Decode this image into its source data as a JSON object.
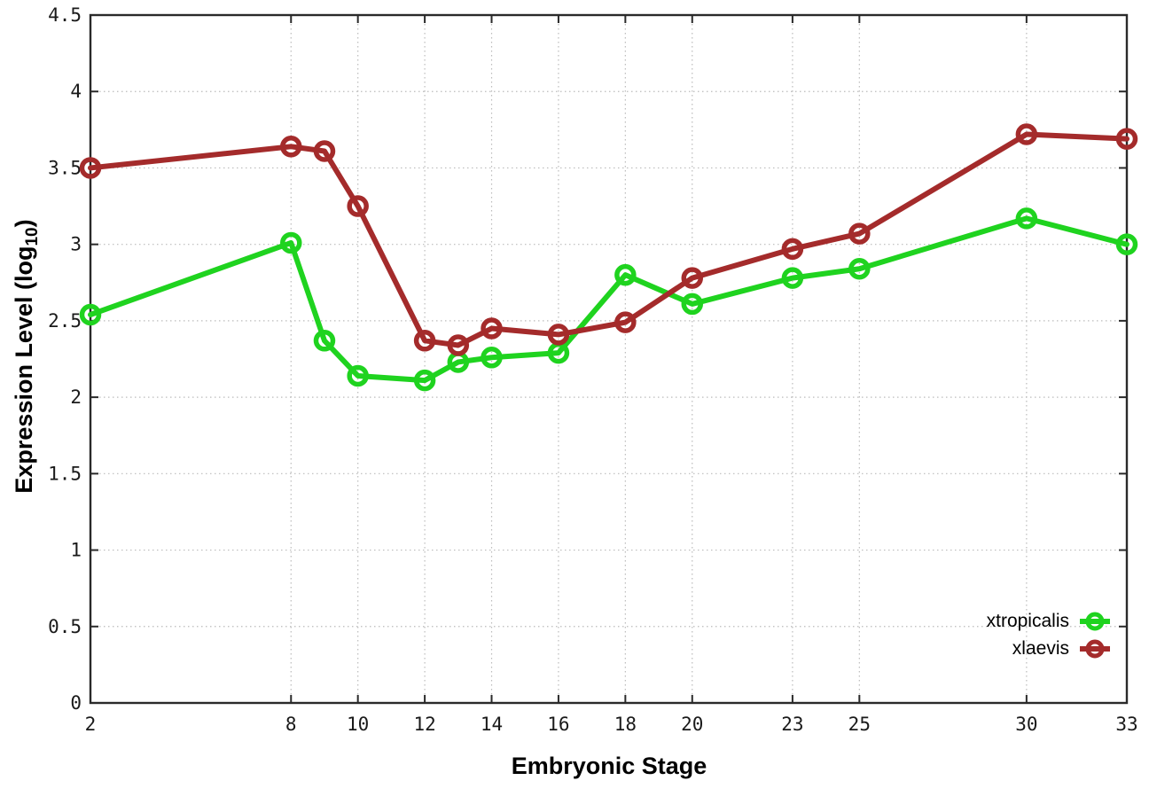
{
  "chart_data": {
    "type": "line",
    "title": "",
    "xlabel": "Embryonic Stage",
    "ylabel_text": "Expression Level (log",
    "ylabel_subscript": "10",
    "ylabel_suffix": ")",
    "x": [
      2,
      8,
      9,
      10,
      12,
      13,
      14,
      16,
      18,
      20,
      23,
      25,
      30,
      33
    ],
    "series": [
      {
        "name": "xtropicalis",
        "color": "#1fd31f",
        "values": [
          2.54,
          3.01,
          2.37,
          2.14,
          2.11,
          2.23,
          2.26,
          2.29,
          2.8,
          2.61,
          2.78,
          2.84,
          3.17,
          3.0
        ]
      },
      {
        "name": "xlaevis",
        "color": "#a42b2b",
        "values": [
          3.5,
          3.64,
          3.61,
          3.25,
          2.37,
          2.34,
          2.45,
          2.41,
          2.49,
          2.78,
          2.97,
          3.07,
          3.72,
          3.69
        ]
      }
    ],
    "xlim": [
      2,
      33
    ],
    "ylim": [
      0,
      4.5
    ],
    "xticks": [
      2,
      8,
      10,
      12,
      14,
      16,
      18,
      20,
      23,
      25,
      30,
      33
    ],
    "xtick_labels": [
      "2",
      "8",
      "10",
      "12",
      "14",
      "16",
      "18",
      "20",
      "23",
      "25",
      "30",
      "33"
    ],
    "yticks": [
      0,
      0.5,
      1,
      1.5,
      2,
      2.5,
      3,
      3.5,
      4,
      4.5
    ],
    "ytick_labels": [
      "0",
      "0.5",
      "1",
      "1.5",
      "2",
      "2.5",
      "3",
      "3.5",
      "4",
      "4.5"
    ],
    "grid": true,
    "legend_position": "bottom-right",
    "colors": {
      "grid": "#bbbbbb",
      "border": "#2a2a2a",
      "tick_text": "#1a1a1a"
    }
  }
}
